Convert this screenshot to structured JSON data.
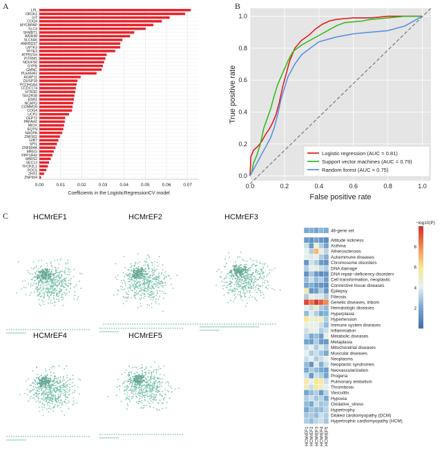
{
  "panels": {
    "a": "A",
    "b": "B",
    "c": "C"
  },
  "colors": {
    "bar": "#e8222a",
    "lr": "#e41a1c",
    "svm": "#33bb22",
    "rf": "#5a8fe0",
    "diag": "#777777",
    "node": "#7ec4b0",
    "plot_bg": "#e5e5e5"
  },
  "chart_a": {
    "type": "bar",
    "orientation": "horizontal",
    "xlabel": "Coefficients in the LogisticRegressionCV model",
    "xticks": [
      "0.00",
      "0.01",
      "0.02",
      "0.03",
      "0.04",
      "0.05",
      "0.06",
      "0.07"
    ],
    "xlim": [
      0,
      0.075
    ],
    "categories": [
      "LPL",
      "OR1K1",
      "VIT",
      "COQ4",
      "MYCBPAP",
      "SLC4",
      "SFMBT1",
      "WDR49",
      "SLC6A6",
      "ANKRD37",
      "LMTK3",
      "TPTE2",
      "ATP6V1H",
      "PITRM1",
      "NDUFS6",
      "GYPB",
      "GMNC",
      "PLEKHA1",
      "AGAP11",
      "DUSP18",
      "PCDHGA4",
      "CCDC174",
      "HTR3D",
      "TAS2R38",
      "ESR1",
      "NCAPG",
      "COMMD9",
      "COG4",
      "UCP3",
      "CEP72",
      "PAFAH2",
      "MIOX",
      "EQTN",
      "NAGPA",
      "ZNF502",
      "GIB7",
      "SPI1",
      "ZNF804A",
      "MREG",
      "PPP1R42",
      "HARS2",
      "SEC13",
      "TFCP2L1",
      "POC5",
      "ZHX1",
      "ZNF564"
    ],
    "values": [
      0.0715,
      0.0688,
      0.0615,
      0.0578,
      0.0538,
      0.0502,
      0.0448,
      0.0428,
      0.0392,
      0.0382,
      0.0382,
      0.0358,
      0.0318,
      0.0312,
      0.0306,
      0.03,
      0.0294,
      0.027,
      0.0195,
      0.018,
      0.0176,
      0.0172,
      0.017,
      0.0166,
      0.0163,
      0.016,
      0.0157,
      0.0154,
      0.014,
      0.0122,
      0.012,
      0.0117,
      0.0113,
      0.0108,
      0.0097,
      0.009,
      0.0083,
      0.0076,
      0.0068,
      0.0062,
      0.0054,
      0.0046,
      0.004,
      0.0033,
      0.0022,
      0.0008
    ]
  },
  "chart_b": {
    "type": "line",
    "xlabel": "False positive rate",
    "ylabel": "True positive rate",
    "xticks": [
      "0.0",
      "0.2",
      "0.4",
      "0.6",
      "0.8",
      "1.0"
    ],
    "yticks": [
      "0.0",
      "0.2",
      "0.4",
      "0.6",
      "0.8",
      "1.0"
    ],
    "xlim": [
      0,
      1.05
    ],
    "ylim": [
      -0.03,
      1.05
    ],
    "legend_position": "lower-right",
    "series": [
      {
        "name": "Logistic regression (AUC = 0.81)",
        "color": "#e41a1c",
        "x": [
          0,
          0.005,
          0.02,
          0.05,
          0.07,
          0.09,
          0.11,
          0.13,
          0.15,
          0.17,
          0.19,
          0.21,
          0.23,
          0.26,
          0.3,
          0.34,
          0.38,
          0.42,
          0.46,
          0.5,
          0.55,
          0.6,
          0.7,
          0.8,
          0.9,
          1.0
        ],
        "y": [
          0,
          0.12,
          0.16,
          0.19,
          0.22,
          0.26,
          0.29,
          0.33,
          0.38,
          0.46,
          0.56,
          0.64,
          0.72,
          0.8,
          0.85,
          0.88,
          0.92,
          0.95,
          0.97,
          0.98,
          0.985,
          0.99,
          0.99,
          1.0,
          1.0,
          1.0
        ]
      },
      {
        "name": "Support vector machines (AUC = 0.79)",
        "color": "#33bb22",
        "x": [
          0,
          0.01,
          0.02,
          0.04,
          0.06,
          0.08,
          0.1,
          0.12,
          0.14,
          0.16,
          0.18,
          0.2,
          0.22,
          0.25,
          0.3,
          0.35,
          0.4,
          0.45,
          0.5,
          0.55,
          0.6,
          0.65,
          0.7,
          0.8,
          0.9,
          1.0
        ],
        "y": [
          0,
          0.02,
          0.08,
          0.13,
          0.2,
          0.3,
          0.36,
          0.42,
          0.5,
          0.57,
          0.62,
          0.67,
          0.72,
          0.78,
          0.82,
          0.85,
          0.88,
          0.91,
          0.94,
          0.96,
          0.965,
          0.97,
          0.98,
          0.99,
          1.0,
          1.0
        ]
      },
      {
        "name": "Random forest (AUC = 0.75)",
        "color": "#5a8fe0",
        "x": [
          0,
          0.01,
          0.03,
          0.05,
          0.08,
          0.1,
          0.12,
          0.14,
          0.16,
          0.18,
          0.2,
          0.22,
          0.24,
          0.26,
          0.3,
          0.35,
          0.4,
          0.5,
          0.6,
          0.7,
          0.8,
          0.9,
          1.0
        ],
        "y": [
          0,
          0.02,
          0.06,
          0.1,
          0.16,
          0.2,
          0.24,
          0.3,
          0.38,
          0.48,
          0.55,
          0.62,
          0.66,
          0.7,
          0.76,
          0.8,
          0.84,
          0.87,
          0.89,
          0.9,
          0.91,
          0.94,
          1.0
        ]
      }
    ]
  },
  "networks": [
    {
      "title": "HCMrEF1",
      "seed": 11
    },
    {
      "title": "HCMrEF2",
      "seed": 27
    },
    {
      "title": "HCMrEF3",
      "seed": 43
    },
    {
      "title": "HCMrEF4",
      "seed": 59
    },
    {
      "title": "HCMrEF5",
      "seed": 71
    }
  ],
  "heatmap": {
    "top_label": "46-gene set",
    "columns": [
      "HCMrEF1",
      "HCMrEF2",
      "HCMrEF3",
      "HCMrEF4",
      "HCMrEF5"
    ],
    "colorbar_label": "−log10(P)",
    "colorbar_ticks": [
      "8",
      "6",
      "4",
      "2"
    ],
    "range": [
      0,
      10
    ],
    "top_row": [
      2.0,
      2.2,
      1.8,
      2.4,
      2.1
    ],
    "rows": [
      {
        "label": "Altitude sickness",
        "values": [
          1.5,
          1.2,
          1.8,
          1.3,
          1.0
        ]
      },
      {
        "label": "Asthma",
        "values": [
          3.5,
          1.5,
          4.5,
          3.0,
          1.8
        ]
      },
      {
        "label": "Atherosclerosis",
        "values": [
          4.0,
          3.0,
          7.0,
          4.5,
          3.2
        ]
      },
      {
        "label": "Autoimmune diseases",
        "values": [
          4.2,
          3.8,
          4.2,
          3.0,
          2.2
        ]
      },
      {
        "label": "Chromosome disorders",
        "values": [
          1.3,
          3.6,
          3.0,
          1.5,
          1.2
        ]
      },
      {
        "label": "DNA damage",
        "values": [
          3.0,
          4.0,
          4.5,
          3.5,
          3.0
        ]
      },
      {
        "label": "DNA repair−deficiency disorders",
        "values": [
          1.2,
          2.8,
          1.5,
          1.0,
          1.2
        ]
      },
      {
        "label": "Cell transformation, neoplastic",
        "values": [
          2.5,
          3.5,
          2.5,
          3.0,
          1.6
        ]
      },
      {
        "label": "Connective tissue diseases",
        "values": [
          1.8,
          2.2,
          1.5,
          1.3,
          1.0
        ]
      },
      {
        "label": "Epilepsy",
        "values": [
          5.5,
          1.3,
          1.6,
          3.0,
          1.4
        ]
      },
      {
        "label": "Fibrosis",
        "values": [
          3.0,
          4.2,
          3.8,
          3.8,
          3.0
        ]
      },
      {
        "label": "Genetic diseases, inborn",
        "values": [
          9.5,
          8.5,
          9.8,
          9.0,
          8.0
        ]
      },
      {
        "label": "Hematologic diseases",
        "values": [
          4.0,
          3.5,
          5.0,
          3.0,
          2.5
        ]
      },
      {
        "label": "Hyperplasia",
        "values": [
          2.5,
          3.8,
          3.0,
          2.0,
          2.2
        ]
      },
      {
        "label": "Hypertension",
        "values": [
          6.0,
          4.5,
          5.0,
          5.0,
          3.0
        ]
      },
      {
        "label": "Immune system diseases",
        "values": [
          4.5,
          4.0,
          4.3,
          3.5,
          2.5
        ]
      },
      {
        "label": "Inflammation",
        "values": [
          3.5,
          4.5,
          4.0,
          3.0,
          3.5
        ]
      },
      {
        "label": "Metabolic diseases",
        "values": [
          3.2,
          2.0,
          2.5,
          1.6,
          4.3
        ]
      },
      {
        "label": "Metaplasia",
        "values": [
          1.8,
          1.6,
          3.0,
          1.5,
          1.4
        ]
      },
      {
        "label": "Mitochondrial diseases",
        "values": [
          3.5,
          4.2,
          3.0,
          3.8,
          3.0
        ]
      },
      {
        "label": "Muscular diseases",
        "values": [
          4.0,
          3.0,
          3.5,
          2.8,
          2.0
        ]
      },
      {
        "label": "Neoplasms",
        "values": [
          3.5,
          4.0,
          3.0,
          3.5,
          4.2
        ]
      },
      {
        "label": "Neoplastic syndromes",
        "values": [
          2.5,
          1.3,
          3.8,
          2.2,
          3.5
        ]
      },
      {
        "label": "Neovascularization",
        "values": [
          2.0,
          3.0,
          2.5,
          2.0,
          1.6
        ]
      },
      {
        "label": "Progeria",
        "values": [
          3.5,
          1.5,
          3.5,
          3.0,
          1.8
        ]
      },
      {
        "label": "Pulmonary embolism",
        "values": [
          5.5,
          4.0,
          6.0,
          5.5,
          3.5
        ]
      },
      {
        "label": "Thrombosis",
        "values": [
          5.0,
          3.5,
          5.8,
          5.0,
          4.0
        ]
      },
      {
        "label": "Vasculitis",
        "values": [
          1.8,
          2.5,
          3.0,
          1.5,
          3.2
        ]
      },
      {
        "label": "Hypoxia",
        "values": [
          3.0,
          3.5,
          2.8,
          3.2,
          2.0
        ]
      },
      {
        "label": "Oxidative_stress",
        "values": [
          2.5,
          2.0,
          3.5,
          2.8,
          3.0
        ]
      },
      {
        "label": "Hypertrophy",
        "values": [
          2.0,
          2.8,
          2.5,
          2.5,
          3.2
        ]
      },
      {
        "label": "Dilated cardiomyopathy (DCM)",
        "values": [
          2.8,
          3.0,
          2.5,
          3.5,
          3.0
        ]
      },
      {
        "label": "Hypertrophic cardiomyopathy (HCM)",
        "values": [
          3.0,
          2.5,
          3.2,
          3.5,
          2.8
        ]
      }
    ]
  }
}
